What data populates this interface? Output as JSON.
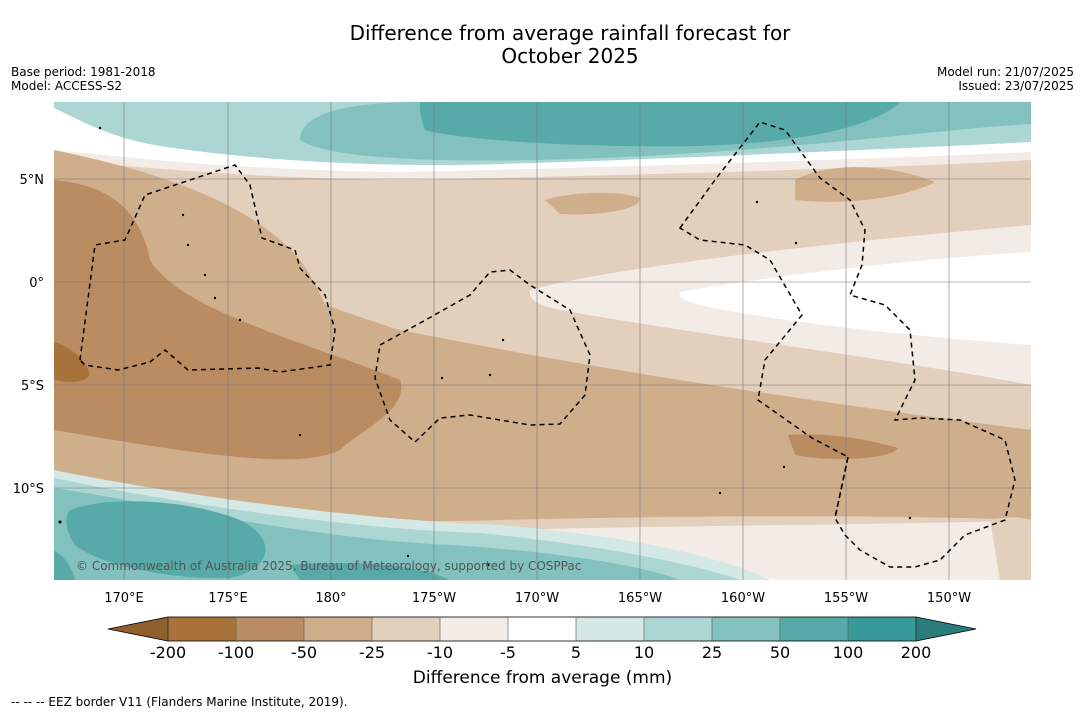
{
  "title_line1": "Difference from average rainfall forecast for",
  "title_line2": "October 2025",
  "meta": {
    "base_period": "Base period: 1981-2018",
    "model": "Model: ACCESS-S2",
    "model_run": "Model run: 21/07/2025",
    "issued": "Issued: 23/07/2025"
  },
  "map": {
    "copyright": "© Commonwealth of Australia 2025, Bureau of Meteorology, supported by COSPPac",
    "lon_labels": [
      "170°E",
      "175°E",
      "180°",
      "175°W",
      "170°W",
      "165°W",
      "160°W",
      "155°W",
      "150°W"
    ],
    "lat_labels": [
      "5°N",
      "0°",
      "5°S",
      "10°S"
    ]
  },
  "colorbar": {
    "ticks": [
      "-200",
      "-100",
      "-50",
      "-25",
      "-10",
      "-5",
      "5",
      "10",
      "25",
      "50",
      "100",
      "200"
    ],
    "colors": [
      "#a8733a",
      "#b98c62",
      "#cfae8c",
      "#e2cfbc",
      "#f3ece6",
      "#ffffff",
      "#d4e9e6",
      "#abd6d3",
      "#82c1be",
      "#57aaa8",
      "#379a98",
      "#2a7d7b"
    ],
    "under_color": "#8f5f2c",
    "label": "Difference from average (mm)"
  },
  "footer": "--  --  -- EEZ border V11 (Flanders Marine Institute, 2019)."
}
